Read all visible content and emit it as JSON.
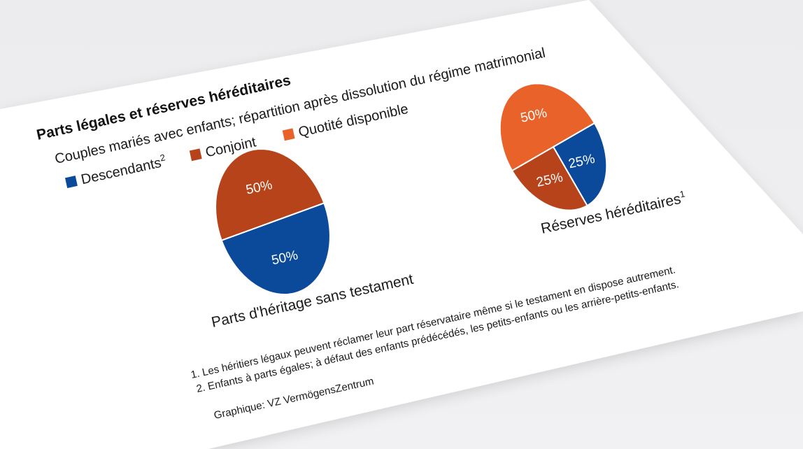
{
  "header": {
    "title": "Parts légales et réserves héréditaires",
    "subtitle": "Couples mariés avec enfants; répartition après dissolution du régime matrimonial"
  },
  "legend": [
    {
      "label": "Descendants",
      "sup": "2",
      "color": "#0b4a9a"
    },
    {
      "label": "Conjoint",
      "sup": "",
      "color": "#b6431a"
    },
    {
      "label": "Quotité disponible",
      "sup": "",
      "color": "#e8622a"
    }
  ],
  "chart_data": [
    {
      "type": "pie",
      "title": "Parts d'héritage sans testament",
      "title_sup": "",
      "slices": [
        {
          "name": "Descendants",
          "value": 50,
          "label": "50%",
          "color": "#0b4a9a"
        },
        {
          "name": "Conjoint",
          "value": 50,
          "label": "50%",
          "color": "#b6431a"
        }
      ]
    },
    {
      "type": "pie",
      "title": "Réserves héréditaires",
      "title_sup": "1",
      "slices": [
        {
          "name": "Descendants",
          "value": 25,
          "label": "25%",
          "color": "#0b4a9a"
        },
        {
          "name": "Conjoint",
          "value": 25,
          "label": "25%",
          "color": "#b6431a"
        },
        {
          "name": "Quotité disponible",
          "value": 50,
          "label": "50%",
          "color": "#e8622a"
        }
      ]
    }
  ],
  "footnotes": [
    "1. Les héritiers légaux peuvent réclamer leur part réservataire même si le testament en dispose autrement.",
    "2. Enfants à parts égales; à défaut des enfants prédécédés, les petits-enfants ou les arrière-petits-enfants."
  ],
  "source": "Graphique: VZ VermögensZentrum"
}
